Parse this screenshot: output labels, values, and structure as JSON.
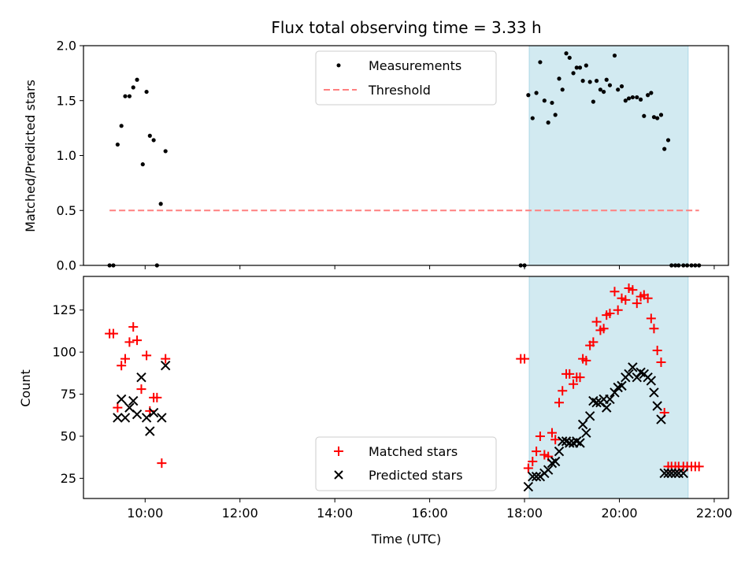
{
  "chart_data": [
    {
      "type": "scatter",
      "title": "Flux total observing time = 3.33 h",
      "xlabel": "",
      "ylabel": "Matched/Predicted stars",
      "xlim": [
        8.7,
        22.3
      ],
      "ylim": [
        0.0,
        2.0
      ],
      "yticks": [
        0.0,
        0.5,
        1.0,
        1.5,
        2.0
      ],
      "ytick_labels": [
        "0.0",
        "0.5",
        "1.0",
        "1.5",
        "2.0"
      ],
      "highlight_span": {
        "x": [
          18.1,
          21.45
        ],
        "color": "#add8e6"
      },
      "legend_position": "top-center",
      "series": [
        {
          "name": "Measurements",
          "kind": "points",
          "color": "#000000",
          "x": [
            9.25,
            9.33,
            9.42,
            9.5,
            9.58,
            9.67,
            9.75,
            9.83,
            9.95,
            10.03,
            10.1,
            10.18,
            10.33,
            10.43,
            10.25,
            17.92,
            18.0,
            18.08,
            18.17,
            18.25,
            18.33,
            18.42,
            18.5,
            18.58,
            18.65,
            18.73,
            18.8,
            18.88,
            18.95,
            19.03,
            19.1,
            19.17,
            19.23,
            19.3,
            19.38,
            19.45,
            19.52,
            19.6,
            19.67,
            19.73,
            19.8,
            19.9,
            19.97,
            20.05,
            20.13,
            20.2,
            20.28,
            20.37,
            20.45,
            20.52,
            20.6,
            20.67,
            20.73,
            20.8,
            20.88,
            20.95,
            21.03,
            21.1,
            21.18,
            21.25,
            21.35,
            21.43,
            21.52,
            21.6,
            21.68
          ],
          "y": [
            0.0,
            0.0,
            1.1,
            1.27,
            1.54,
            1.54,
            1.62,
            1.69,
            0.92,
            1.58,
            1.18,
            1.14,
            0.56,
            1.04,
            0.0,
            0.0,
            0.0,
            1.55,
            1.34,
            1.57,
            1.85,
            1.5,
            1.3,
            1.48,
            1.37,
            1.7,
            1.6,
            1.93,
            1.89,
            1.75,
            1.8,
            1.8,
            1.68,
            1.82,
            1.67,
            1.49,
            1.68,
            1.6,
            1.58,
            1.69,
            1.64,
            1.91,
            1.6,
            1.63,
            1.5,
            1.52,
            1.53,
            1.53,
            1.51,
            1.36,
            1.55,
            1.57,
            1.35,
            1.34,
            1.37,
            1.06,
            1.14,
            0.0,
            0.0,
            0.0,
            0.0,
            0.0,
            0.0,
            0.0,
            0.0
          ]
        },
        {
          "name": "Threshold",
          "kind": "dashed-line",
          "color": "#ff8080",
          "x": [
            9.25,
            21.68
          ],
          "y": [
            0.5,
            0.5
          ]
        }
      ]
    },
    {
      "type": "scatter",
      "title": "",
      "xlabel": "Time (UTC)",
      "ylabel": "Count",
      "xlim": [
        8.7,
        22.3
      ],
      "ylim": [
        13.0,
        145.0
      ],
      "yticks": [
        25,
        50,
        75,
        100,
        125
      ],
      "ytick_labels": [
        "25",
        "50",
        "75",
        "100",
        "125"
      ],
      "xticks": [
        10,
        12,
        14,
        16,
        18,
        20,
        22
      ],
      "xtick_labels": [
        "10:00",
        "12:00",
        "14:00",
        "16:00",
        "18:00",
        "20:00",
        "22:00"
      ],
      "highlight_span": {
        "x": [
          18.1,
          21.45
        ],
        "color": "#add8e6"
      },
      "legend_position": "bottom-center",
      "series": [
        {
          "name": "Matched stars",
          "kind": "plus",
          "color": "#ff0000",
          "x": [
            9.25,
            9.33,
            9.42,
            9.5,
            9.58,
            9.67,
            9.75,
            9.83,
            9.92,
            10.03,
            10.1,
            10.18,
            10.25,
            10.35,
            10.43,
            17.92,
            18.0,
            18.08,
            18.17,
            18.25,
            18.33,
            18.42,
            18.5,
            18.58,
            18.65,
            18.73,
            18.8,
            18.88,
            18.95,
            19.03,
            19.1,
            19.17,
            19.23,
            19.3,
            19.38,
            19.45,
            19.52,
            19.6,
            19.67,
            19.73,
            19.8,
            19.9,
            19.97,
            20.05,
            20.13,
            20.2,
            20.28,
            20.37,
            20.45,
            20.52,
            20.6,
            20.67,
            20.73,
            20.8,
            20.88,
            20.95,
            21.03,
            21.1,
            21.18,
            21.25,
            21.35,
            21.43,
            21.52,
            21.6,
            21.68
          ],
          "y": [
            111,
            111,
            67,
            92,
            96,
            106,
            115,
            107,
            78,
            98,
            65,
            73,
            73,
            34,
            96,
            96,
            96,
            31,
            35,
            41,
            50,
            39,
            38,
            52,
            48,
            70,
            77,
            87,
            87,
            81,
            85,
            85,
            96,
            95,
            104,
            106,
            118,
            113,
            114,
            122,
            123,
            136,
            125,
            132,
            131,
            138,
            137,
            129,
            133,
            134,
            132,
            120,
            114,
            101,
            94,
            64,
            32,
            32,
            32,
            32,
            32,
            32,
            32,
            32,
            32
          ]
        },
        {
          "name": "Predicted stars",
          "kind": "cross",
          "color": "#000000",
          "x": [
            9.42,
            9.5,
            9.58,
            9.67,
            9.75,
            9.83,
            9.92,
            10.03,
            10.1,
            10.18,
            10.35,
            10.43,
            18.08,
            18.17,
            18.25,
            18.33,
            18.42,
            18.5,
            18.58,
            18.65,
            18.73,
            18.8,
            18.88,
            18.95,
            19.03,
            19.1,
            19.17,
            19.23,
            19.3,
            19.38,
            19.45,
            19.52,
            19.6,
            19.67,
            19.73,
            19.8,
            19.9,
            19.97,
            20.05,
            20.13,
            20.2,
            20.28,
            20.37,
            20.45,
            20.52,
            20.6,
            20.67,
            20.73,
            20.8,
            20.88,
            20.95,
            21.03,
            21.1,
            21.18,
            21.25,
            21.35
          ],
          "y": [
            61,
            72,
            61,
            67,
            71,
            63,
            85,
            61,
            53,
            64,
            61,
            92,
            20,
            26,
            26,
            26,
            28,
            30,
            34,
            35,
            41,
            47,
            47,
            46,
            46,
            47,
            46,
            57,
            52,
            62,
            71,
            70,
            70,
            72,
            67,
            72,
            76,
            79,
            80,
            85,
            87,
            91,
            85,
            88,
            87,
            85,
            83,
            76,
            68,
            60,
            28,
            28,
            28,
            28,
            28,
            28
          ]
        }
      ]
    }
  ]
}
